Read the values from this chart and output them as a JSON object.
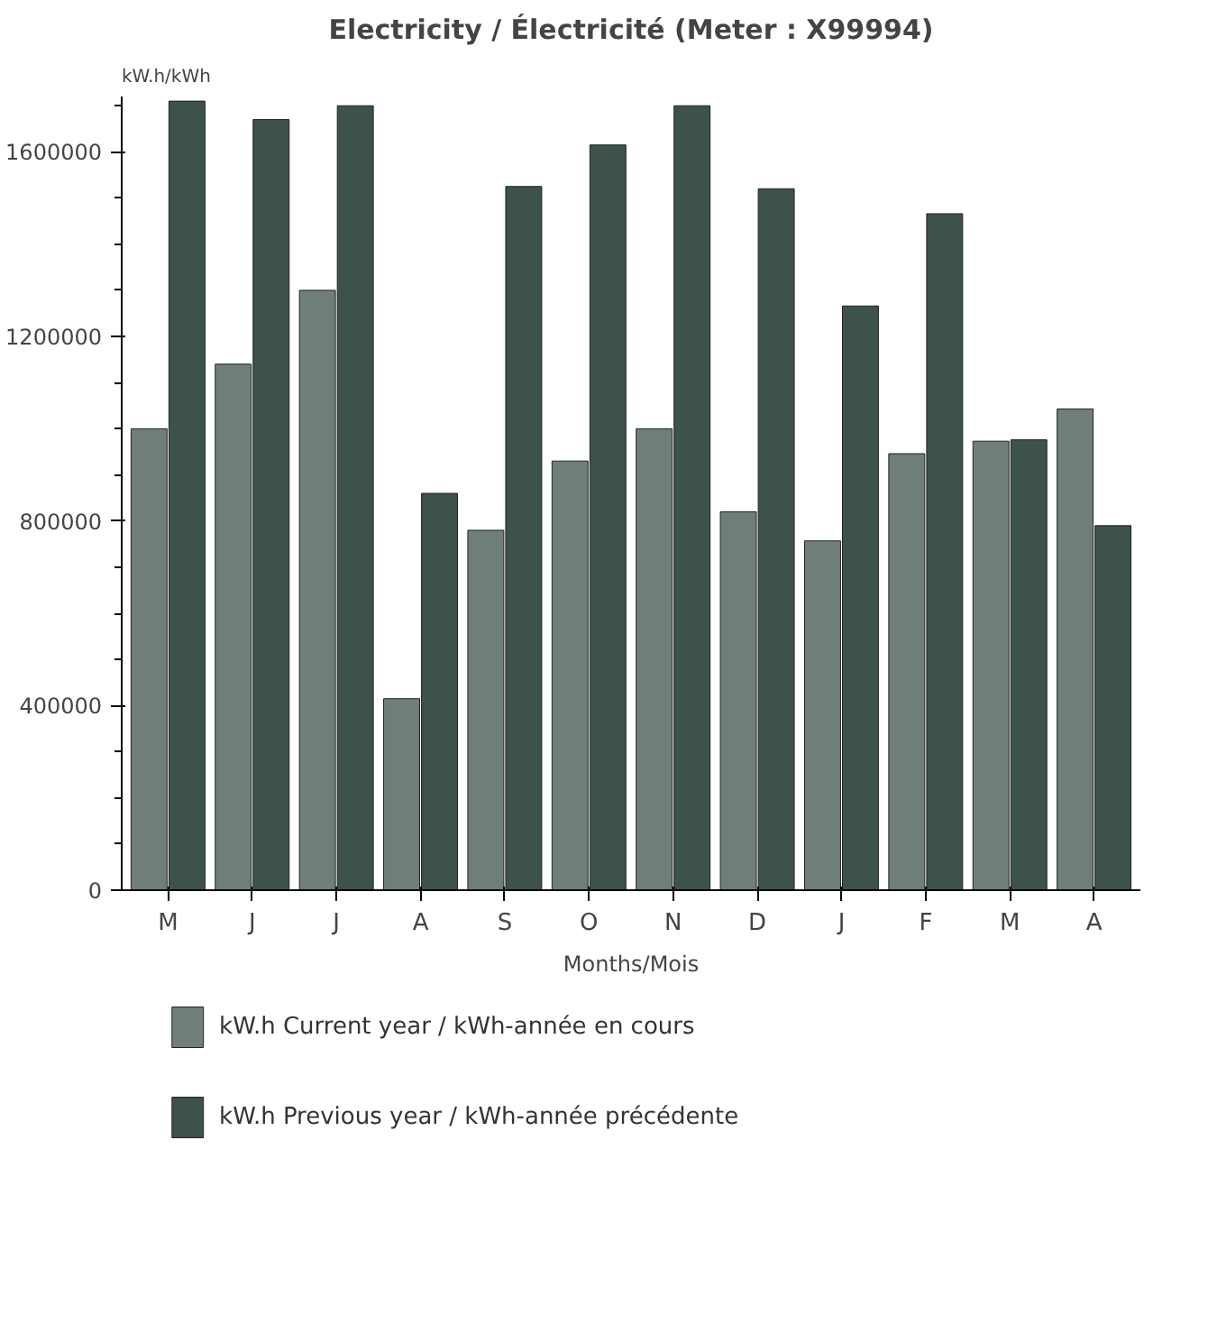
{
  "chart_data": {
    "type": "bar",
    "title": "Electricity / Électricité (Meter : X99994)",
    "ylabel": "kW.h/kWh",
    "xlabel": "Months/Mois",
    "categories": [
      "M",
      "J",
      "J",
      "A",
      "S",
      "O",
      "N",
      "D",
      "J",
      "F",
      "M",
      "A"
    ],
    "series": [
      {
        "name": "kW.h Current year / kWh-année en cours",
        "color": "#6f7f77",
        "values": [
          1000000,
          1140000,
          1300000,
          415000,
          780000,
          930000,
          1000000,
          820000,
          757000,
          946000,
          973000,
          1043000
        ]
      },
      {
        "name": "kW.h Previous year / kWh-année précédente",
        "color": "#3d5249",
        "values": [
          1710000,
          1670000,
          1700000,
          860000,
          1525000,
          1615000,
          1700000,
          1520000,
          1266000,
          1466000,
          976000,
          790000
        ]
      }
    ],
    "ylim": [
      0,
      1720000
    ],
    "yticks": [
      0,
      {
        "value": 100000,
        "label": null
      },
      {
        "value": 200000,
        "label": null
      },
      {
        "value": 300000,
        "label": null
      },
      400000,
      {
        "value": 500000,
        "label": null
      },
      {
        "value": 600000,
        "label": null
      },
      {
        "value": 700000,
        "label": null
      },
      800000,
      {
        "value": 900000,
        "label": null
      },
      {
        "value": 1000000,
        "label": null
      },
      {
        "value": 1100000,
        "label": null
      },
      1200000,
      {
        "value": 1300000,
        "label": null
      },
      {
        "value": 1400000,
        "label": null
      },
      {
        "value": 1500000,
        "label": null
      },
      1600000,
      {
        "value": 1700000,
        "label": null
      }
    ],
    "grid": false,
    "legend": "bottom"
  }
}
